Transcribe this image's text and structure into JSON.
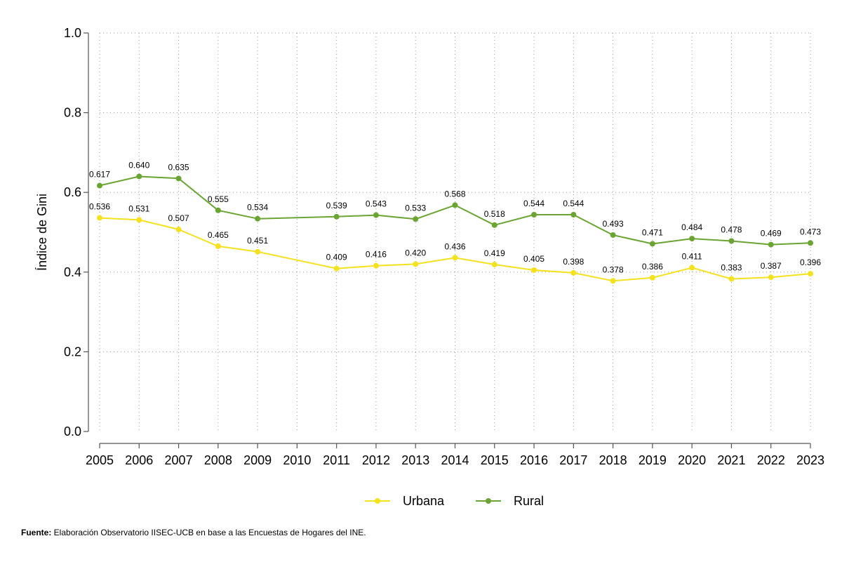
{
  "chart_data": {
    "type": "line",
    "title": "",
    "xlabel": "",
    "ylabel": "Índice de Gini",
    "ylim": [
      0.0,
      1.0
    ],
    "yticks": [
      "0.0",
      "0.2",
      "0.4",
      "0.6",
      "0.8",
      "1.0"
    ],
    "grid": true,
    "legend_position": "bottom-center",
    "categories": [
      "2005",
      "2006",
      "2007",
      "2008",
      "2009",
      "2010",
      "2011",
      "2012",
      "2013",
      "2014",
      "2015",
      "2016",
      "2017",
      "2018",
      "2019",
      "2020",
      "2021",
      "2022",
      "2023"
    ],
    "series": [
      {
        "name": "Urbana",
        "color": "#f5e11e",
        "values": [
          0.536,
          0.531,
          0.507,
          0.465,
          0.451,
          null,
          0.409,
          0.416,
          0.42,
          0.436,
          0.419,
          0.405,
          0.398,
          0.378,
          0.386,
          0.411,
          0.383,
          0.387,
          0.396
        ],
        "labels": [
          "0.536",
          "0.531",
          "0.507",
          "0.465",
          "0.451",
          null,
          "0.409",
          "0.416",
          "0.420",
          "0.436",
          "0.419",
          "0.405",
          "0.398",
          "0.378",
          "0.386",
          "0.411",
          "0.383",
          "0.387",
          "0.396"
        ]
      },
      {
        "name": "Rural",
        "color": "#6aa533",
        "values": [
          0.617,
          0.64,
          0.635,
          0.555,
          0.534,
          null,
          0.539,
          0.543,
          0.533,
          0.568,
          0.518,
          0.544,
          0.544,
          0.493,
          0.471,
          0.484,
          0.478,
          0.469,
          0.473
        ],
        "labels": [
          "0.617",
          "0.640",
          "0.635",
          "0.555",
          "0.534",
          null,
          "0.539",
          "0.543",
          "0.533",
          "0.568",
          "0.518",
          "0.544",
          "0.544",
          "0.493",
          "0.471",
          "0.484",
          "0.478",
          "0.469",
          "0.473"
        ]
      }
    ]
  },
  "source": {
    "label": "Fuente:",
    "text": " Elaboración Observatorio IISEC-UCB en base a las Encuestas de Hogares del INE."
  }
}
